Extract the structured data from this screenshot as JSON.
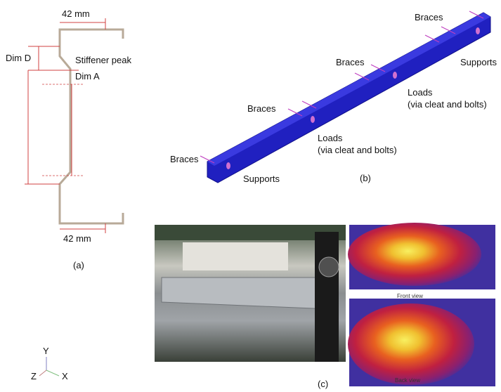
{
  "panel_a": {
    "top_dim": "42 mm",
    "bottom_dim": "42 mm",
    "dim_d": "Dim D",
    "dim_a": "Dim A",
    "stiffener": "Stiffener peak",
    "caption": "(a)"
  },
  "panel_b": {
    "braces": [
      "Braces",
      "Braces",
      "Braces",
      "Braces"
    ],
    "supports": [
      "Supports",
      "Supports"
    ],
    "loads": [
      {
        "title": "Loads",
        "detail": "(via cleat and bolts)"
      },
      {
        "title": "Loads",
        "detail": "(via cleat and bolts)"
      }
    ],
    "caption": "(b)"
  },
  "panel_c": {
    "front": "Front view",
    "back": "Back view",
    "caption": "(c)"
  },
  "axes": {
    "x": "X",
    "y": "Y",
    "z": "Z"
  }
}
